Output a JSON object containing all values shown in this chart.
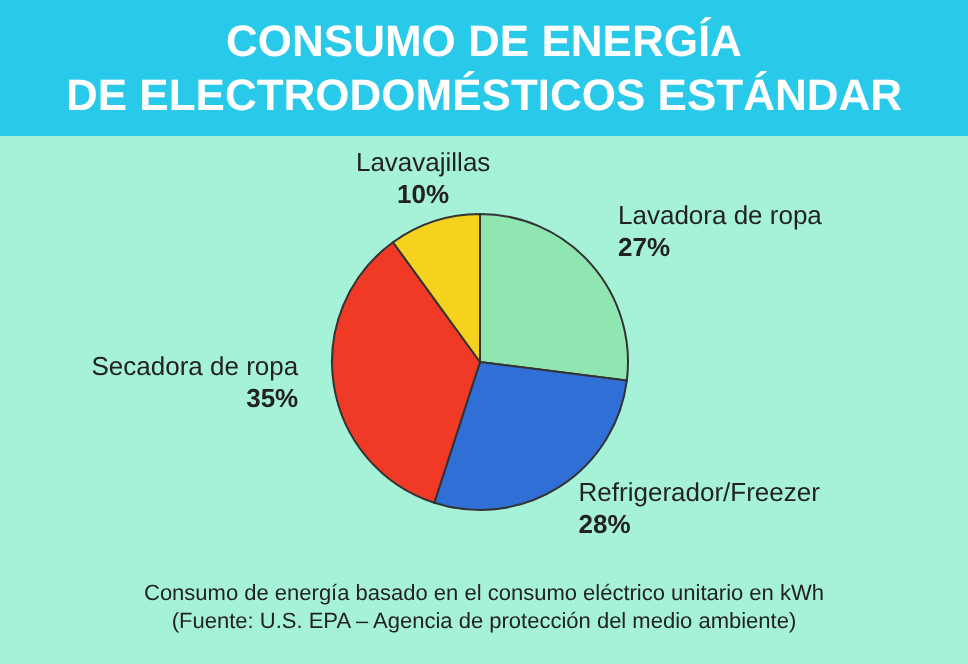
{
  "chart_data": {
    "type": "pie",
    "title": "CONSUMO DE ENERGÍA\nDE ELECTRODOMÉSTICOS ESTÁNDAR",
    "categories": [
      "Lavadora de ropa",
      "Refrigerador/Freezer",
      "Secadora de ropa",
      "Lavavajillas"
    ],
    "values": [
      27,
      28,
      35,
      10
    ],
    "value_labels": [
      "27%",
      "28%",
      "35%",
      "10%"
    ],
    "colors": [
      "#8fe6b0",
      "#2f6fd6",
      "#f03a26",
      "#f4d21e"
    ],
    "legend": false,
    "annotations": [
      "Consumo de energía basado en el consumo eléctrico unitario en kWh",
      "(Fuente: U.S. EPA – Agencia de protección del medio ambiente)"
    ]
  }
}
